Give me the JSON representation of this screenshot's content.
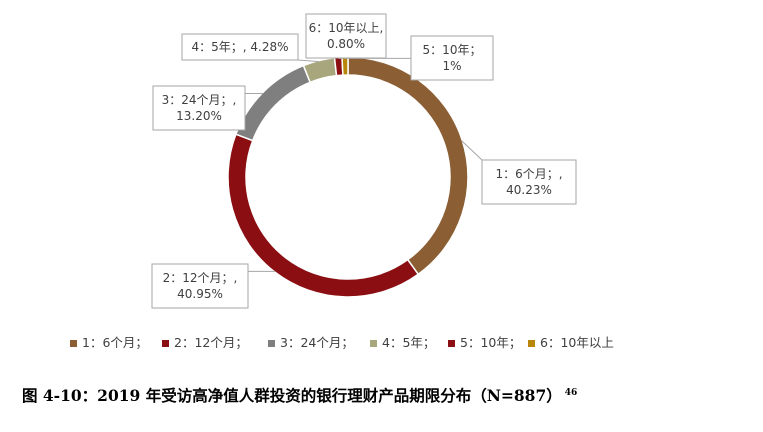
{
  "caption": {
    "text": "图 4-10：2019 年受访高净值人群投资的银行理财产品期限分布（N=887）",
    "footnote": "46"
  },
  "chart_data": {
    "type": "pie",
    "variant": "doughnut",
    "n": 887,
    "legend_position": "bottom",
    "slices": [
      {
        "name": "1：6个月；",
        "value": 40.23,
        "label_lines": [
          "1：6个月；,",
          "40.23%"
        ],
        "color": "#8b5e34"
      },
      {
        "name": "2：12个月；",
        "value": 40.95,
        "label_lines": [
          "2：12个月；,",
          "40.95%"
        ],
        "color": "#8b0f12"
      },
      {
        "name": "3：24个月；",
        "value": 13.2,
        "label_lines": [
          "3：24个月；,",
          "13.20%"
        ],
        "color": "#7f7f7f"
      },
      {
        "name": "4：5年；",
        "value": 4.28,
        "label_lines": [
          "4：5年；, 4.28%"
        ],
        "color": "#a8a67c"
      },
      {
        "name": "5：10年；",
        "value": 1,
        "label_lines": [
          "5：10年；",
          "1%"
        ],
        "color": "#8b0f12"
      },
      {
        "name": "6：10年以上",
        "value": 0.8,
        "label_lines": [
          "6：10年以上,",
          "0.80%"
        ],
        "color": "#b8860b"
      }
    ]
  }
}
